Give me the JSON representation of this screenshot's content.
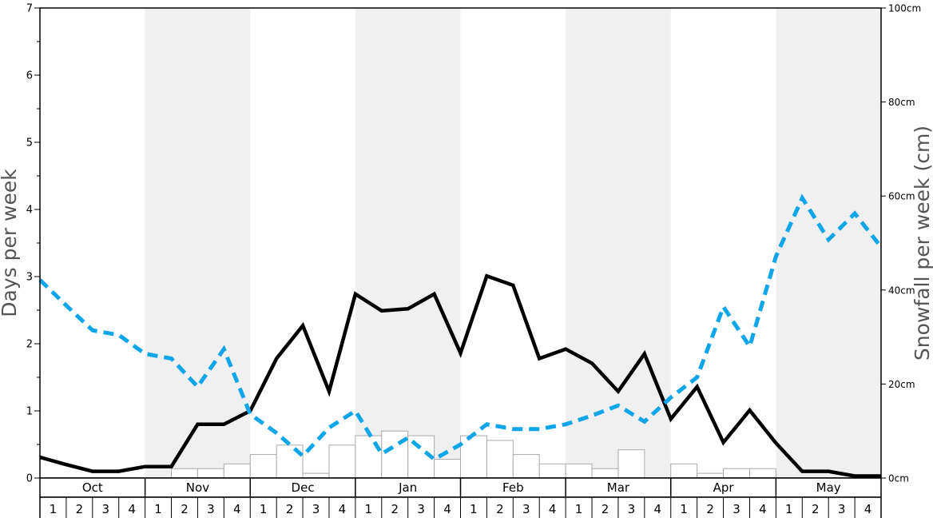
{
  "chart_data": {
    "type": "bar+line",
    "months": [
      "Oct",
      "Nov",
      "Dec",
      "Jan",
      "Feb",
      "Mar",
      "Apr",
      "May"
    ],
    "week_labels": [
      "1",
      "2",
      "3",
      "4"
    ],
    "ylabel_left": "Days per week",
    "ylabel_right": "Snowfall per week (cm)",
    "ylim_left": [
      0,
      7
    ],
    "ylim_right": [
      0,
      100
    ],
    "left_ticks": [
      "0",
      "1",
      "2",
      "3",
      "4",
      "5",
      "6",
      "7"
    ],
    "right_ticks": [
      "0cm",
      "20cm",
      "40cm",
      "60cm",
      "80cm",
      "100cm"
    ],
    "shaded_months": [
      "Nov",
      "Jan",
      "Mar",
      "May"
    ],
    "colors": {
      "snowfall_bar_fill": "#ffffff",
      "snowfall_bar_stroke": "#aaaaaa",
      "solid_line": "#000000",
      "dashed_line": "#0ea5e9",
      "shade": "#f0f0f0"
    },
    "series": [
      {
        "kind": "bar",
        "axis": "right",
        "values": [
          0,
          0,
          0,
          0,
          0,
          2,
          2,
          3,
          5,
          7,
          1,
          7,
          9,
          10,
          9,
          4,
          9,
          8,
          5,
          3,
          3,
          2,
          6,
          0,
          3,
          1,
          2,
          2,
          0,
          0,
          0,
          0
        ]
      },
      {
        "kind": "line",
        "style": "solid",
        "axis": "left",
        "values": [
          0.31,
          0.2,
          0.1,
          0.1,
          0.17,
          0.17,
          0.8,
          0.8,
          1.0,
          1.78,
          2.27,
          1.29,
          2.74,
          2.49,
          2.52,
          2.74,
          1.86,
          3.01,
          2.87,
          1.78,
          1.92,
          1.71,
          1.29,
          1.85,
          0.88,
          1.36,
          0.53,
          1.01,
          0.52,
          0.1,
          0.1,
          0.03,
          0.03
        ]
      },
      {
        "kind": "line",
        "style": "dashed",
        "axis": "left",
        "values": [
          2.95,
          2.57,
          2.2,
          2.13,
          1.85,
          1.78,
          1.36,
          1.92,
          0.95,
          0.67,
          0.33,
          0.75,
          1.0,
          0.36,
          0.6,
          0.28,
          0.5,
          0.8,
          0.73,
          0.73,
          0.8,
          0.93,
          1.08,
          0.84,
          1.2,
          1.5,
          2.55,
          1.96,
          3.3,
          4.17,
          3.55,
          3.94,
          3.44
        ]
      }
    ]
  }
}
